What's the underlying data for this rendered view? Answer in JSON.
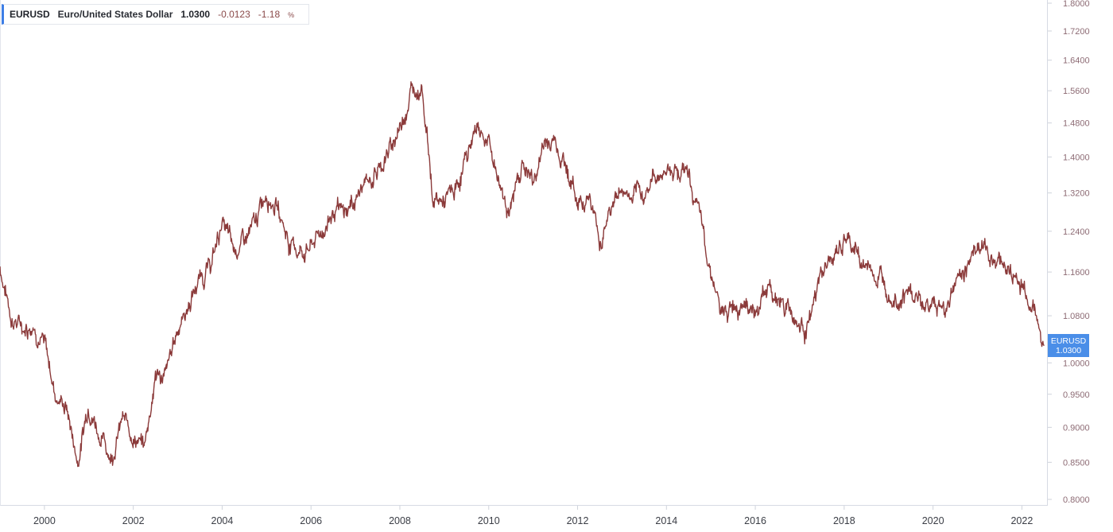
{
  "legend": {
    "symbol": "EURUSD",
    "description": "Euro/United States Dollar",
    "last": "1.0300",
    "change": "-0.0123",
    "change_pct": "-1.18",
    "pct_unit": "%"
  },
  "badge": {
    "symbol": "EURUSD",
    "value": "1.0300"
  },
  "colors": {
    "line": "#8b3a3a",
    "badge": "#4a8ee8",
    "legend_accent": "#3d7ee6",
    "axis_text": "#8d6b74"
  },
  "chart_data": {
    "type": "line",
    "title": "",
    "xlabel": "",
    "ylabel": "",
    "x_ticks": [
      "2000",
      "2002",
      "2004",
      "2006",
      "2008",
      "2010",
      "2012",
      "2014",
      "2016",
      "2018",
      "2020",
      "2022"
    ],
    "y_ticks": [
      "1.8000",
      "1.7200",
      "1.6400",
      "1.5600",
      "1.4800",
      "1.4000",
      "1.3200",
      "1.2400",
      "1.1600",
      "1.0800",
      "1.0000",
      "0.9500",
      "0.9000",
      "0.8500",
      "0.8000"
    ],
    "xlim": [
      "1999-01-01",
      "2022-08-01"
    ],
    "ylim": [
      0.8,
      1.8
    ],
    "y_axis": "right",
    "y_scale": "log",
    "series": [
      {
        "name": "EURUSD",
        "x": [
          "1999-01",
          "1999-04",
          "1999-07",
          "1999-10",
          "2000-01",
          "2000-04",
          "2000-07",
          "2000-10",
          "2001-01",
          "2001-04",
          "2001-07",
          "2001-10",
          "2002-01",
          "2002-04",
          "2002-07",
          "2002-10",
          "2003-01",
          "2003-04",
          "2003-07",
          "2003-10",
          "2004-01",
          "2004-04",
          "2004-07",
          "2004-10",
          "2005-01",
          "2005-04",
          "2005-07",
          "2005-10",
          "2006-01",
          "2006-04",
          "2006-07",
          "2006-10",
          "2007-01",
          "2007-04",
          "2007-07",
          "2007-10",
          "2008-01",
          "2008-04",
          "2008-07",
          "2008-10",
          "2009-01",
          "2009-04",
          "2009-07",
          "2009-10",
          "2010-01",
          "2010-04",
          "2010-07",
          "2010-10",
          "2011-01",
          "2011-04",
          "2011-07",
          "2011-10",
          "2012-01",
          "2012-04",
          "2012-07",
          "2012-10",
          "2013-01",
          "2013-04",
          "2013-07",
          "2013-10",
          "2014-01",
          "2014-04",
          "2014-07",
          "2014-10",
          "2015-01",
          "2015-04",
          "2015-07",
          "2015-10",
          "2016-01",
          "2016-04",
          "2016-07",
          "2016-10",
          "2017-01",
          "2017-04",
          "2017-07",
          "2017-10",
          "2018-01",
          "2018-04",
          "2018-07",
          "2018-10",
          "2019-01",
          "2019-04",
          "2019-07",
          "2019-10",
          "2020-01",
          "2020-04",
          "2020-07",
          "2020-10",
          "2021-01",
          "2021-04",
          "2021-07",
          "2021-10",
          "2022-01",
          "2022-04",
          "2022-07"
        ],
        "values": [
          1.17,
          1.08,
          1.06,
          1.07,
          1.03,
          0.95,
          0.93,
          0.85,
          0.94,
          0.89,
          0.86,
          0.91,
          0.89,
          0.87,
          0.98,
          0.98,
          1.06,
          1.1,
          1.15,
          1.17,
          1.26,
          1.2,
          1.22,
          1.25,
          1.33,
          1.29,
          1.22,
          1.2,
          1.21,
          1.24,
          1.28,
          1.27,
          1.31,
          1.34,
          1.37,
          1.41,
          1.47,
          1.56,
          1.58,
          1.3,
          1.3,
          1.32,
          1.4,
          1.48,
          1.43,
          1.34,
          1.28,
          1.39,
          1.34,
          1.43,
          1.44,
          1.38,
          1.3,
          1.32,
          1.22,
          1.29,
          1.33,
          1.3,
          1.32,
          1.36,
          1.37,
          1.38,
          1.36,
          1.26,
          1.17,
          1.07,
          1.1,
          1.12,
          1.08,
          1.13,
          1.11,
          1.1,
          1.06,
          1.07,
          1.16,
          1.18,
          1.22,
          1.2,
          1.17,
          1.15,
          1.14,
          1.12,
          1.12,
          1.1,
          1.1,
          1.09,
          1.14,
          1.17,
          1.22,
          1.19,
          1.19,
          1.16,
          1.13,
          1.1,
          1.03
        ]
      }
    ]
  }
}
